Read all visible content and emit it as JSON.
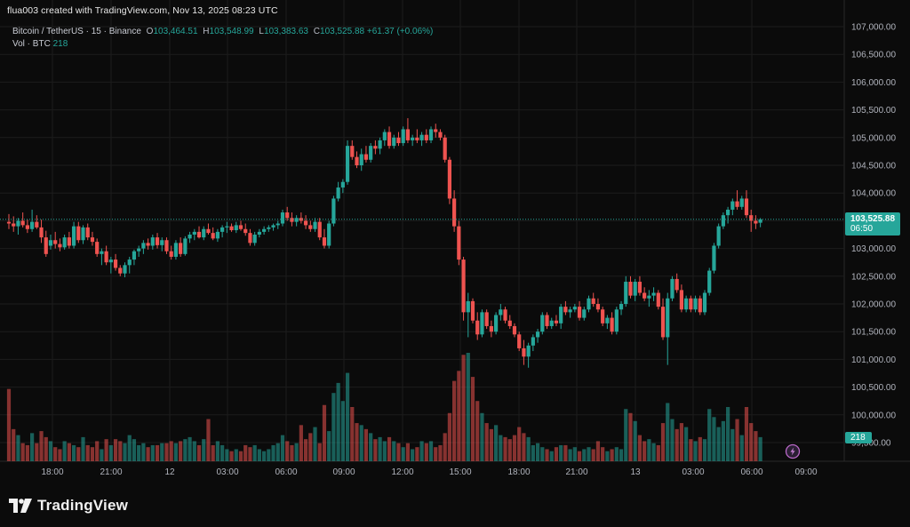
{
  "header": {
    "caption": "flua003 created with TradingView.com, Nov 13, 2025 08:23 UTC"
  },
  "legend": {
    "symbol": "Bitcoin / TetherUS · 15 · Binance",
    "open_key": "O",
    "open": "103,464.51",
    "high_key": "H",
    "high": "103,548.99",
    "low_key": "L",
    "low": "103,383.63",
    "close_key": "C",
    "close": "103,525.88",
    "change": "+61.37 (+0.06%)",
    "vol_label": "Vol · BTC",
    "vol_value": "218"
  },
  "price_tag": {
    "price": "103,525.88",
    "countdown": "06:50"
  },
  "volume_tag": "218",
  "brand": "TradingView",
  "colors": {
    "up": "#26a69a",
    "down": "#ef5350",
    "background": "#0b0b0b",
    "grid": "#1c1c1c"
  },
  "chart_data": {
    "type": "candlestick",
    "title": "Bitcoin / TetherUS · 15 · Binance",
    "y_axis": {
      "min": 99500,
      "max": 107000,
      "ticks": [
        "107,000.00",
        "106,500.00",
        "106,000.00",
        "105,500.00",
        "105,000.00",
        "104,500.00",
        "104,000.00",
        "103,500.00",
        "103,000.00",
        "102,500.00",
        "102,000.00",
        "101,500.00",
        "101,000.00",
        "100,500.00",
        "100,000.00",
        "99,500.00"
      ]
    },
    "x_axis": {
      "ticks": [
        "18:00",
        "21:00",
        "12",
        "03:00",
        "06:00",
        "09:00",
        "12:00",
        "15:00",
        "18:00",
        "21:00",
        "13",
        "03:00",
        "06:00",
        "09:00"
      ]
    },
    "grid": true,
    "last_price": 103525.88,
    "candles": [
      [
        103480,
        103620,
        103350,
        103450,
        3.6
      ],
      [
        103450,
        103580,
        103300,
        103400,
        1.6
      ],
      [
        103400,
        103550,
        103250,
        103500,
        1.3
      ],
      [
        103500,
        103650,
        103380,
        103420,
        0.9
      ],
      [
        103420,
        103520,
        103280,
        103350,
        0.8
      ],
      [
        103350,
        103700,
        103300,
        103480,
        1.4
      ],
      [
        103480,
        103600,
        103350,
        103380,
        0.9
      ],
      [
        103380,
        103520,
        103100,
        103200,
        1.5
      ],
      [
        103200,
        103320,
        102850,
        102900,
        1.2
      ],
      [
        103050,
        103250,
        102980,
        103150,
        1.0
      ],
      [
        103150,
        103300,
        103000,
        103080,
        0.7
      ],
      [
        103080,
        103180,
        102950,
        103020,
        0.6
      ],
      [
        103020,
        103250,
        102980,
        103200,
        1.0
      ],
      [
        103200,
        103300,
        103000,
        103050,
        0.9
      ],
      [
        103050,
        103480,
        103000,
        103400,
        0.8
      ],
      [
        103400,
        103480,
        103100,
        103150,
        0.7
      ],
      [
        103150,
        103420,
        103080,
        103380,
        1.2
      ],
      [
        103380,
        103450,
        103150,
        103200,
        0.8
      ],
      [
        103200,
        103300,
        103050,
        103120,
        0.7
      ],
      [
        103120,
        103180,
        102850,
        102900,
        1.0
      ],
      [
        102900,
        103000,
        102700,
        102950,
        0.6
      ],
      [
        102950,
        103050,
        102700,
        102750,
        1.1
      ],
      [
        102750,
        102850,
        102550,
        102800,
        0.8
      ],
      [
        102800,
        102900,
        102600,
        102650,
        1.1
      ],
      [
        102650,
        102700,
        102500,
        102550,
        1.0
      ],
      [
        102550,
        102750,
        102480,
        102700,
        0.9
      ],
      [
        102700,
        102850,
        102550,
        102800,
        1.3
      ],
      [
        102800,
        102980,
        102700,
        102950,
        1.1
      ],
      [
        102950,
        103050,
        102850,
        103000,
        0.8
      ],
      [
        103000,
        103150,
        102900,
        103100,
        0.9
      ],
      [
        103100,
        103180,
        102980,
        103050,
        0.7
      ],
      [
        103050,
        103250,
        102980,
        103200,
        0.8
      ],
      [
        103200,
        103280,
        103000,
        103060,
        0.8
      ],
      [
        103060,
        103200,
        102950,
        103150,
        0.9
      ],
      [
        103150,
        103200,
        102900,
        102950,
        0.9
      ],
      [
        102950,
        103050,
        102800,
        102850,
        1.0
      ],
      [
        102850,
        103150,
        102800,
        103100,
        0.9
      ],
      [
        103100,
        103200,
        102850,
        102900,
        1.0
      ],
      [
        102900,
        103220,
        102870,
        103180,
        1.1
      ],
      [
        103180,
        103300,
        103100,
        103250,
        1.2
      ],
      [
        103250,
        103350,
        103150,
        103300,
        1.0
      ],
      [
        103300,
        103400,
        103180,
        103200,
        0.8
      ],
      [
        103200,
        103400,
        103150,
        103350,
        1.1
      ],
      [
        103350,
        103450,
        103250,
        103280,
        2.1
      ],
      [
        103280,
        103380,
        103150,
        103180,
        0.8
      ],
      [
        103180,
        103350,
        103120,
        103300,
        1.0
      ],
      [
        103300,
        103420,
        103200,
        103380,
        0.8
      ],
      [
        103380,
        103480,
        103280,
        103400,
        0.6
      ],
      [
        103400,
        103450,
        103300,
        103330,
        0.5
      ],
      [
        103330,
        103480,
        103280,
        103420,
        0.6
      ],
      [
        103420,
        103500,
        103320,
        103350,
        0.5
      ],
      [
        103350,
        103450,
        103230,
        103280,
        0.8
      ],
      [
        103280,
        103350,
        103050,
        103100,
        0.7
      ],
      [
        103100,
        103300,
        103050,
        103250,
        0.8
      ],
      [
        103250,
        103350,
        103200,
        103300,
        0.6
      ],
      [
        103300,
        103400,
        103250,
        103350,
        0.5
      ],
      [
        103350,
        103420,
        103300,
        103380,
        0.6
      ],
      [
        103380,
        103450,
        103320,
        103420,
        0.8
      ],
      [
        103420,
        103500,
        103350,
        103450,
        0.9
      ],
      [
        103450,
        103700,
        103400,
        103650,
        1.3
      ],
      [
        103650,
        103750,
        103500,
        103550,
        1.0
      ],
      [
        103550,
        103650,
        103400,
        103480,
        0.8
      ],
      [
        103480,
        103600,
        103400,
        103550,
        0.9
      ],
      [
        103550,
        103650,
        103450,
        103500,
        1.8
      ],
      [
        103500,
        103600,
        103350,
        103420,
        1.1
      ],
      [
        103420,
        103500,
        103300,
        103350,
        1.4
      ],
      [
        103350,
        103550,
        103300,
        103480,
        1.7
      ],
      [
        103480,
        103550,
        103150,
        103200,
        0.9
      ],
      [
        103200,
        103350,
        103000,
        103050,
        2.8
      ],
      [
        103050,
        103500,
        103000,
        103450,
        1.5
      ],
      [
        103450,
        103950,
        103400,
        103900,
        3.4
      ],
      [
        103900,
        104200,
        103850,
        104100,
        3.9
      ],
      [
        104100,
        104250,
        104000,
        104200,
        3.0
      ],
      [
        104200,
        104950,
        104150,
        104850,
        4.4
      ],
      [
        104850,
        104950,
        104600,
        104650,
        2.7
      ],
      [
        104650,
        104750,
        104450,
        104500,
        1.9
      ],
      [
        104500,
        104800,
        104400,
        104700,
        1.8
      ],
      [
        104700,
        104850,
        104550,
        104600,
        1.6
      ],
      [
        104600,
        104900,
        104550,
        104850,
        1.4
      ],
      [
        104850,
        104950,
        104700,
        104800,
        1.1
      ],
      [
        104800,
        105000,
        104700,
        104950,
        1.2
      ],
      [
        104950,
        105150,
        104850,
        105100,
        1.0
      ],
      [
        105100,
        105200,
        104800,
        104850,
        1.2
      ],
      [
        104850,
        105050,
        104800,
        105000,
        1.0
      ],
      [
        105000,
        105100,
        104850,
        104900,
        0.9
      ],
      [
        104900,
        105200,
        104850,
        105150,
        0.7
      ],
      [
        105150,
        105350,
        104900,
        104950,
        0.9
      ],
      [
        104950,
        105050,
        104850,
        105000,
        0.6
      ],
      [
        105000,
        105150,
        104900,
        104950,
        0.7
      ],
      [
        104950,
        105100,
        104850,
        105050,
        1.0
      ],
      [
        105050,
        105150,
        104900,
        104950,
        0.9
      ],
      [
        104950,
        105200,
        104900,
        105150,
        1.0
      ],
      [
        105150,
        105250,
        105000,
        105100,
        0.7
      ],
      [
        105100,
        105150,
        104950,
        105000,
        0.8
      ],
      [
        105000,
        105050,
        104550,
        104600,
        1.4
      ],
      [
        104600,
        104650,
        103800,
        103900,
        2.4
      ],
      [
        103900,
        104050,
        103300,
        103400,
        4.0
      ],
      [
        103400,
        103500,
        102700,
        102800,
        4.5
      ],
      [
        102800,
        102850,
        101700,
        101850,
        5.3
      ],
      [
        101850,
        102200,
        101400,
        102050,
        5.4
      ],
      [
        102050,
        102100,
        101650,
        101700,
        4.2
      ],
      [
        101700,
        101850,
        101350,
        101450,
        3.0
      ],
      [
        101450,
        101900,
        101400,
        101850,
        2.4
      ],
      [
        101850,
        101900,
        101550,
        101600,
        1.9
      ],
      [
        101600,
        101700,
        101400,
        101500,
        1.6
      ],
      [
        101500,
        101850,
        101450,
        101800,
        1.8
      ],
      [
        101800,
        102000,
        101700,
        101900,
        1.3
      ],
      [
        101900,
        101950,
        101650,
        101700,
        1.2
      ],
      [
        101700,
        101800,
        101550,
        101600,
        1.1
      ],
      [
        101600,
        101650,
        101400,
        101450,
        1.3
      ],
      [
        101450,
        101500,
        101150,
        101200,
        1.7
      ],
      [
        101200,
        101350,
        100900,
        101050,
        1.4
      ],
      [
        101050,
        101300,
        100850,
        101250,
        1.2
      ],
      [
        101250,
        101450,
        101150,
        101400,
        0.8
      ],
      [
        101400,
        101550,
        101300,
        101500,
        0.9
      ],
      [
        101500,
        101850,
        101450,
        101800,
        0.7
      ],
      [
        101800,
        101850,
        101550,
        101600,
        0.6
      ],
      [
        101600,
        101750,
        101550,
        101700,
        0.5
      ],
      [
        101700,
        101800,
        101600,
        101650,
        0.7
      ],
      [
        101650,
        102000,
        101550,
        101950,
        0.8
      ],
      [
        101950,
        102050,
        101800,
        101850,
        0.8
      ],
      [
        101850,
        101950,
        101750,
        101900,
        0.6
      ],
      [
        101900,
        102000,
        101850,
        101950,
        0.7
      ],
      [
        101950,
        102050,
        101700,
        101750,
        0.5
      ],
      [
        101750,
        101950,
        101700,
        101900,
        0.6
      ],
      [
        101900,
        102150,
        101850,
        102100,
        0.7
      ],
      [
        102100,
        102200,
        101950,
        102000,
        0.6
      ],
      [
        102000,
        102100,
        101850,
        101900,
        1.0
      ],
      [
        101900,
        101950,
        101600,
        101650,
        0.7
      ],
      [
        101650,
        101800,
        101550,
        101750,
        0.5
      ],
      [
        101750,
        101850,
        101450,
        101500,
        0.6
      ],
      [
        101500,
        101950,
        101450,
        101900,
        0.7
      ],
      [
        101900,
        102050,
        101800,
        102000,
        0.6
      ],
      [
        102000,
        102500,
        101950,
        102400,
        2.6
      ],
      [
        102400,
        102500,
        102100,
        102150,
        2.4
      ],
      [
        102150,
        102450,
        102050,
        102400,
        2.0
      ],
      [
        102400,
        102500,
        102150,
        102200,
        1.3
      ],
      [
        102200,
        102300,
        102050,
        102100,
        1.0
      ],
      [
        102100,
        102250,
        101950,
        102150,
        1.1
      ],
      [
        102150,
        102300,
        102050,
        102200,
        0.9
      ],
      [
        102200,
        102250,
        101900,
        101950,
        0.8
      ],
      [
        101950,
        102100,
        101350,
        101400,
        1.9
      ],
      [
        101400,
        102200,
        100900,
        102100,
        2.9
      ],
      [
        102100,
        102500,
        102050,
        102450,
        2.1
      ],
      [
        102450,
        102550,
        102200,
        102250,
        1.6
      ],
      [
        102250,
        102350,
        101850,
        101900,
        1.9
      ],
      [
        101900,
        102150,
        101850,
        102100,
        1.7
      ],
      [
        102100,
        102150,
        101850,
        101900,
        1.1
      ],
      [
        101900,
        102150,
        101850,
        102100,
        1.0
      ],
      [
        102100,
        102150,
        101800,
        101850,
        1.2
      ],
      [
        101850,
        102250,
        101800,
        102200,
        1.1
      ],
      [
        102200,
        102650,
        102150,
        102600,
        2.6
      ],
      [
        102600,
        103100,
        102550,
        103050,
        2.2
      ],
      [
        103050,
        103450,
        103000,
        103400,
        1.7
      ],
      [
        103400,
        103650,
        103350,
        103600,
        2.0
      ],
      [
        103600,
        103750,
        103450,
        103700,
        2.7
      ],
      [
        103700,
        103900,
        103600,
        103850,
        1.6
      ],
      [
        103850,
        104050,
        103700,
        103750,
        2.1
      ],
      [
        103750,
        103950,
        103700,
        103900,
        1.3
      ],
      [
        103900,
        104050,
        103550,
        103600,
        2.7
      ],
      [
        103600,
        103700,
        103300,
        103500,
        1.9
      ],
      [
        103500,
        103600,
        103350,
        103450,
        1.5
      ],
      [
        103464.51,
        103548.99,
        103383.63,
        103525.88,
        1.2
      ]
    ]
  }
}
